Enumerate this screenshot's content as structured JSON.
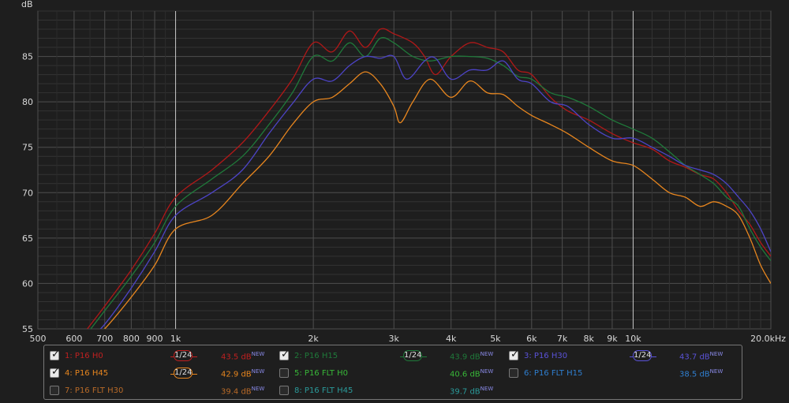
{
  "chart_data": {
    "type": "line",
    "ylabel": "dB",
    "x_scale": "log",
    "xlim": [
      500,
      20000
    ],
    "ylim": [
      55,
      90
    ],
    "grid": true,
    "y_ticks": [
      55,
      60,
      65,
      70,
      75,
      80,
      85
    ],
    "x_ticks": [
      {
        "value": 500,
        "label": "500"
      },
      {
        "value": 600,
        "label": "600"
      },
      {
        "value": 700,
        "label": "700"
      },
      {
        "value": 800,
        "label": "800"
      },
      {
        "value": 900,
        "label": "900"
      },
      {
        "value": 1000,
        "label": "1k"
      },
      {
        "value": 2000,
        "label": "2k"
      },
      {
        "value": 3000,
        "label": "3k"
      },
      {
        "value": 4000,
        "label": "4k"
      },
      {
        "value": 5000,
        "label": "5k"
      },
      {
        "value": 6000,
        "label": "6k"
      },
      {
        "value": 7000,
        "label": "7k"
      },
      {
        "value": 8000,
        "label": "8k"
      },
      {
        "value": 9000,
        "label": "9k"
      },
      {
        "value": 10000,
        "label": "10k"
      },
      {
        "value": 20000,
        "label": "20.0kHz"
      }
    ],
    "highlight_x": [
      1000,
      10000
    ],
    "series": [
      {
        "name": "P16 H0",
        "color": "#b01818",
        "points": [
          [
            630,
            54.5
          ],
          [
            700,
            57.5
          ],
          [
            800,
            61.5
          ],
          [
            900,
            65.5
          ],
          [
            1000,
            69.5
          ],
          [
            1200,
            72.5
          ],
          [
            1400,
            75.5
          ],
          [
            1600,
            79
          ],
          [
            1800,
            82.5
          ],
          [
            2000,
            86.5
          ],
          [
            2200,
            85.5
          ],
          [
            2400,
            87.8
          ],
          [
            2600,
            86
          ],
          [
            2800,
            88
          ],
          [
            3000,
            87.5
          ],
          [
            3300,
            86.5
          ],
          [
            3500,
            85
          ],
          [
            3700,
            83
          ],
          [
            4000,
            85
          ],
          [
            4400,
            86.5
          ],
          [
            4800,
            86
          ],
          [
            5200,
            85.5
          ],
          [
            5600,
            83.5
          ],
          [
            6000,
            83
          ],
          [
            6600,
            80.5
          ],
          [
            7200,
            79
          ],
          [
            8000,
            78
          ],
          [
            9000,
            76.5
          ],
          [
            10000,
            75.5
          ],
          [
            11000,
            74.8
          ],
          [
            12000,
            73.5
          ],
          [
            13000,
            72.8
          ],
          [
            14000,
            72
          ],
          [
            15000,
            71.5
          ],
          [
            16000,
            70
          ],
          [
            17000,
            68
          ],
          [
            18000,
            66.5
          ],
          [
            19000,
            64.5
          ],
          [
            20000,
            63
          ]
        ]
      },
      {
        "name": "P16 H15",
        "color": "#1f7a3a",
        "points": [
          [
            630,
            54
          ],
          [
            700,
            57
          ],
          [
            800,
            60.8
          ],
          [
            900,
            64.5
          ],
          [
            1000,
            68.5
          ],
          [
            1200,
            71.5
          ],
          [
            1400,
            74
          ],
          [
            1600,
            77.5
          ],
          [
            1800,
            81
          ],
          [
            2000,
            85
          ],
          [
            2200,
            84.5
          ],
          [
            2400,
            86.5
          ],
          [
            2600,
            85
          ],
          [
            2800,
            87
          ],
          [
            3000,
            86.5
          ],
          [
            3300,
            85
          ],
          [
            3600,
            84.5
          ],
          [
            4000,
            85
          ],
          [
            4400,
            85
          ],
          [
            4800,
            84.8
          ],
          [
            5200,
            84
          ],
          [
            5600,
            82.8
          ],
          [
            6000,
            82.5
          ],
          [
            6600,
            81
          ],
          [
            7200,
            80.5
          ],
          [
            8000,
            79.5
          ],
          [
            9000,
            78
          ],
          [
            10000,
            77
          ],
          [
            11000,
            76
          ],
          [
            12000,
            74.5
          ],
          [
            13000,
            73
          ],
          [
            14000,
            72
          ],
          [
            15000,
            71
          ],
          [
            16000,
            69.5
          ],
          [
            17000,
            68.5
          ],
          [
            18000,
            66
          ],
          [
            19000,
            64
          ],
          [
            20000,
            62.5
          ]
        ]
      },
      {
        "name": "P16 H30",
        "color": "#4d44c7",
        "points": [
          [
            650,
            54
          ],
          [
            700,
            55.5
          ],
          [
            800,
            59.5
          ],
          [
            900,
            63.5
          ],
          [
            1000,
            67.5
          ],
          [
            1200,
            70
          ],
          [
            1400,
            72.5
          ],
          [
            1600,
            76.5
          ],
          [
            1800,
            79.8
          ],
          [
            2000,
            82.5
          ],
          [
            2200,
            82.3
          ],
          [
            2400,
            84
          ],
          [
            2600,
            85
          ],
          [
            2800,
            84.8
          ],
          [
            3000,
            85
          ],
          [
            3200,
            82.5
          ],
          [
            3500,
            84.5
          ],
          [
            3700,
            84.8
          ],
          [
            4000,
            82.5
          ],
          [
            4400,
            83.5
          ],
          [
            4800,
            83.5
          ],
          [
            5200,
            84.5
          ],
          [
            5600,
            82.5
          ],
          [
            6000,
            82
          ],
          [
            6600,
            80
          ],
          [
            7200,
            79.5
          ],
          [
            8000,
            77.5
          ],
          [
            9000,
            76
          ],
          [
            10000,
            76
          ],
          [
            11000,
            75
          ],
          [
            12000,
            74
          ],
          [
            13000,
            73
          ],
          [
            14000,
            72.5
          ],
          [
            15000,
            72
          ],
          [
            16000,
            71
          ],
          [
            17000,
            69.5
          ],
          [
            18000,
            68
          ],
          [
            19000,
            66
          ],
          [
            20000,
            63.5
          ]
        ]
      },
      {
        "name": "P16 H45",
        "color": "#e8861e",
        "points": [
          [
            660,
            54
          ],
          [
            700,
            55
          ],
          [
            800,
            58.5
          ],
          [
            900,
            62
          ],
          [
            1000,
            66
          ],
          [
            1200,
            67.5
          ],
          [
            1400,
            71
          ],
          [
            1600,
            74
          ],
          [
            1800,
            77.5
          ],
          [
            2000,
            80
          ],
          [
            2200,
            80.5
          ],
          [
            2400,
            82
          ],
          [
            2600,
            83.3
          ],
          [
            2800,
            82
          ],
          [
            3000,
            79.5
          ],
          [
            3100,
            77.7
          ],
          [
            3300,
            80
          ],
          [
            3600,
            82.5
          ],
          [
            4000,
            80.5
          ],
          [
            4400,
            82.3
          ],
          [
            4800,
            81
          ],
          [
            5200,
            80.8
          ],
          [
            5600,
            79.5
          ],
          [
            6000,
            78.5
          ],
          [
            6600,
            77.5
          ],
          [
            7200,
            76.5
          ],
          [
            8000,
            75
          ],
          [
            9000,
            73.5
          ],
          [
            10000,
            73
          ],
          [
            11000,
            71.5
          ],
          [
            12000,
            70
          ],
          [
            13000,
            69.5
          ],
          [
            14000,
            68.5
          ],
          [
            15000,
            69
          ],
          [
            16000,
            68.5
          ],
          [
            17000,
            67.5
          ],
          [
            18000,
            65
          ],
          [
            19000,
            62
          ],
          [
            20000,
            60
          ]
        ]
      }
    ]
  },
  "legend": {
    "items": [
      {
        "label": "1: P16 H0",
        "checked": true,
        "color": "#c02020",
        "smoothing": "1/24",
        "spl": "43.5 dB",
        "spl_color": "#c02020",
        "tag": "NEW"
      },
      {
        "label": "2: P16 H15",
        "checked": true,
        "color": "#1f7a3a",
        "smoothing": "1/24",
        "spl": "43.9 dB",
        "spl_color": "#1f7a3a",
        "tag": "NEW"
      },
      {
        "label": "3: P16 H30",
        "checked": true,
        "color": "#5a52d8",
        "smoothing": "1/24",
        "spl": "43.7 dB",
        "spl_color": "#5a52d8",
        "tag": "NEW"
      },
      {
        "label": "4: P16 H45",
        "checked": true,
        "color": "#e8861e",
        "smoothing": "1/24",
        "spl": "42.9 dB",
        "spl_color": "#e8861e",
        "tag": "NEW"
      },
      {
        "label": "5: P16 FLT H0",
        "checked": false,
        "color": "#38b838",
        "smoothing": "",
        "spl": "40.6 dB",
        "spl_color": "#38b838",
        "tag": "NEW"
      },
      {
        "label": "6: P16 FLT H15",
        "checked": false,
        "color": "#2f7fd0",
        "smoothing": "",
        "spl": "38.5 dB",
        "spl_color": "#2f7fd0",
        "tag": "NEW"
      },
      {
        "label": "7: P16 FLT H30",
        "checked": false,
        "color": "#b86a28",
        "smoothing": "",
        "spl": "39.4 dB",
        "spl_color": "#b86a28",
        "tag": "NEW"
      },
      {
        "label": "8: P16 FLT H45",
        "checked": false,
        "color": "#2a9a9a",
        "smoothing": "",
        "spl": "39.7 dB",
        "spl_color": "#2a9a9a",
        "tag": "NEW"
      }
    ]
  }
}
